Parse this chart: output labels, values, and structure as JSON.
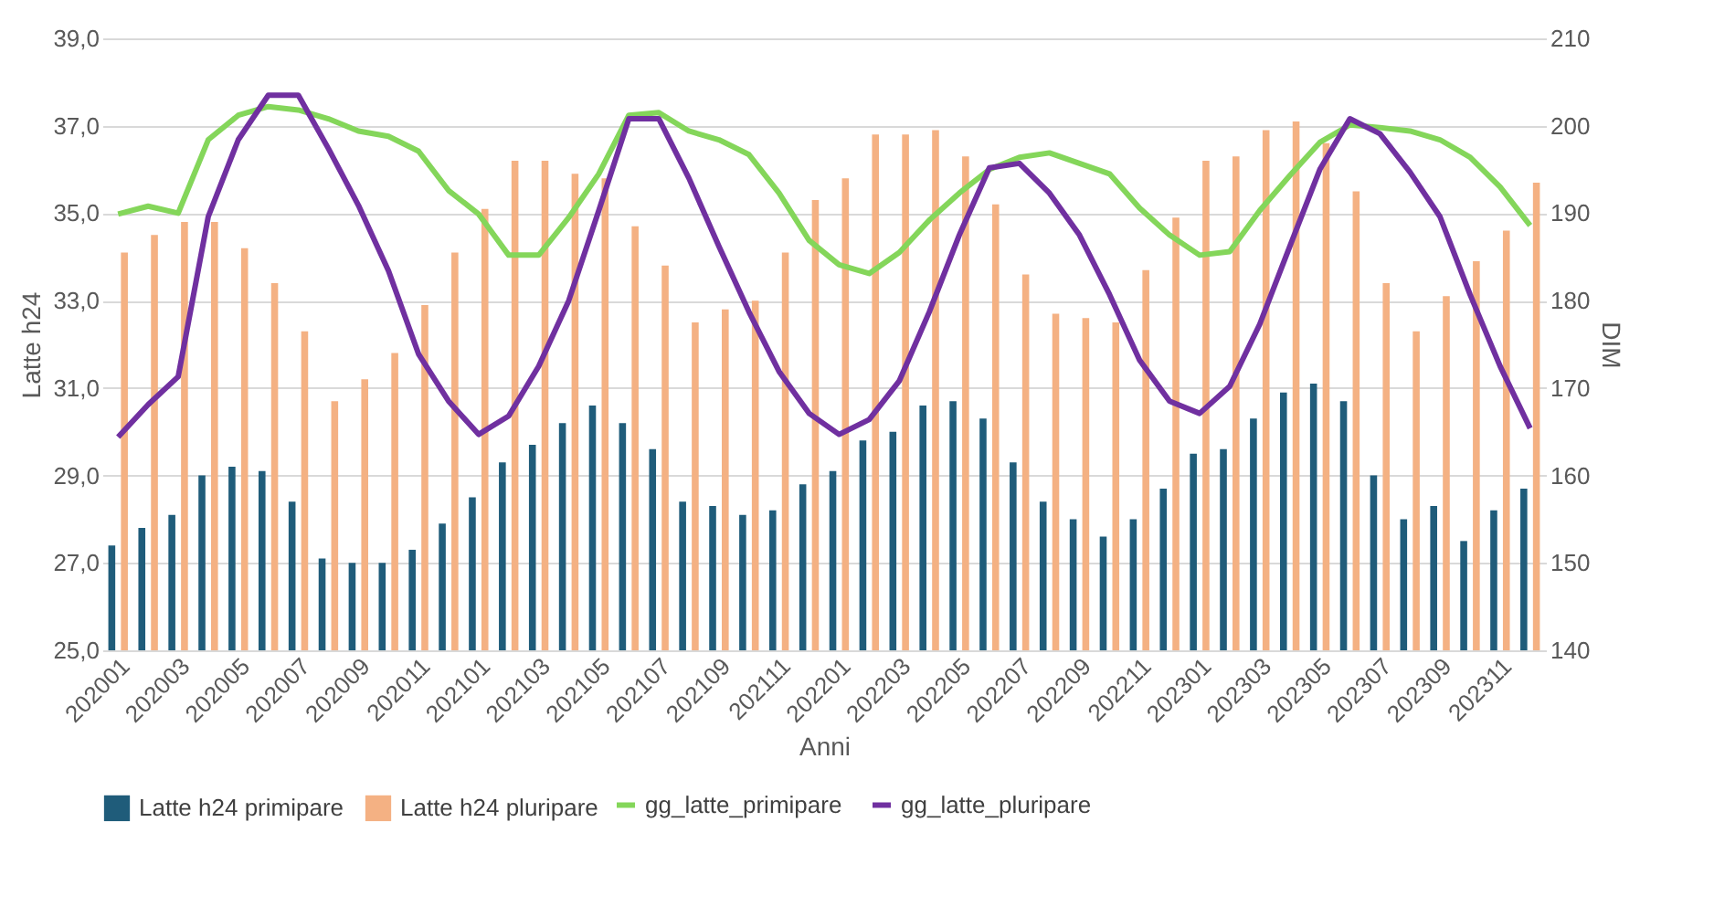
{
  "chart_data": {
    "type": "bar",
    "xlabel": "Anni",
    "ylabel": "Latte h24",
    "y2label": "DIM",
    "categories": [
      "202001",
      null,
      "202003",
      null,
      "202005",
      null,
      "202007",
      null,
      "202009",
      null,
      "202011",
      null,
      "202101",
      null,
      "202103",
      null,
      "202105",
      null,
      "202107",
      null,
      "202109",
      null,
      "202111",
      null,
      "202201",
      null,
      "202203",
      null,
      "202205",
      null,
      "202207",
      null,
      "202209",
      null,
      "202211",
      null,
      "202301",
      null,
      "202303",
      null,
      "202305",
      null,
      "202307",
      null,
      "202309",
      null,
      "202311",
      null
    ],
    "series": [
      {
        "name": "Latte h24 primipare",
        "color": "#1f5c7a",
        "values": [
          27.4,
          27.8,
          28.1,
          29.0,
          29.2,
          29.1,
          28.4,
          27.1,
          27.0,
          27.0,
          27.3,
          27.9,
          28.5,
          29.3,
          29.7,
          30.2,
          30.6,
          30.2,
          29.6,
          28.4,
          28.3,
          28.1,
          28.2,
          28.8,
          29.1,
          29.8,
          30.0,
          30.6,
          30.7,
          30.3,
          29.3,
          28.4,
          28.0,
          27.6,
          28.0,
          28.7,
          29.5,
          29.6,
          30.3,
          30.9,
          31.1,
          30.7,
          29.0,
          28.0,
          28.3,
          27.5,
          28.2,
          28.7
        ]
      },
      {
        "name": "Latte h24 pluripare",
        "color": "#f4b183",
        "values": [
          34.1,
          34.5,
          34.8,
          34.8,
          34.2,
          33.4,
          32.3,
          30.7,
          31.2,
          31.8,
          32.9,
          34.1,
          35.1,
          36.2,
          36.2,
          35.9,
          35.8,
          34.7,
          33.8,
          32.5,
          32.8,
          33.0,
          34.1,
          35.3,
          35.8,
          36.8,
          36.8,
          36.9,
          36.3,
          35.2,
          33.6,
          32.7,
          32.6,
          32.5,
          33.7,
          34.9,
          36.2,
          36.3,
          36.9,
          37.1,
          36.6,
          35.5,
          33.4,
          32.3,
          33.1,
          33.9,
          34.6,
          35.7
        ]
      },
      {
        "name": "gg_latte_primipare",
        "type": "line",
        "axis": "y2",
        "color": "#84d65a",
        "values": [
          189.9,
          190.8,
          190.0,
          198.4,
          201.2,
          202.2,
          201.8,
          200.8,
          199.4,
          198.8,
          197.1,
          192.6,
          189.9,
          185.2,
          185.2,
          189.5,
          194.5,
          201.2,
          201.5,
          199.4,
          198.4,
          196.7,
          192.3,
          186.9,
          184.1,
          183.1,
          185.5,
          189.2,
          192.3,
          195.0,
          196.4,
          196.9,
          195.7,
          194.5,
          190.6,
          187.5,
          185.2,
          185.6,
          190.3,
          194.3,
          198.1,
          200.1,
          199.8,
          199.4,
          198.4,
          196.4,
          193.0,
          188.6
        ]
      },
      {
        "name": "gg_latte_pluripare",
        "type": "line",
        "axis": "y2",
        "color": "#7030a0",
        "values": [
          164.4,
          168.1,
          171.3,
          189.6,
          198.4,
          203.5,
          203.5,
          197.4,
          190.9,
          183.4,
          173.9,
          168.5,
          164.7,
          166.8,
          172.5,
          180.0,
          190.3,
          200.8,
          200.8,
          194.0,
          186.2,
          178.7,
          171.9,
          167.1,
          164.7,
          166.4,
          170.8,
          178.7,
          187.5,
          195.2,
          195.7,
          192.3,
          187.5,
          180.7,
          173.2,
          168.5,
          167.1,
          170.2,
          177.3,
          186.2,
          195.0,
          200.8,
          199.1,
          194.7,
          189.6,
          180.7,
          172.5,
          165.4
        ]
      }
    ],
    "ylim": [
      25,
      39
    ],
    "yticks": [
      {
        "value": 25,
        "label": "25,0"
      },
      {
        "value": 27,
        "label": "27,0"
      },
      {
        "value": 29,
        "label": "29,0"
      },
      {
        "value": 31,
        "label": "31,0"
      },
      {
        "value": 33,
        "label": "33,0"
      },
      {
        "value": 35,
        "label": "35,0"
      },
      {
        "value": 37,
        "label": "37,0"
      },
      {
        "value": 39,
        "label": "39,0"
      }
    ],
    "y2lim": [
      140,
      210
    ],
    "y2ticks": [
      140,
      150,
      160,
      170,
      180,
      190,
      200,
      210
    ],
    "grid": "y",
    "legend": "bottom",
    "line_style": "solid",
    "marker": "none"
  }
}
